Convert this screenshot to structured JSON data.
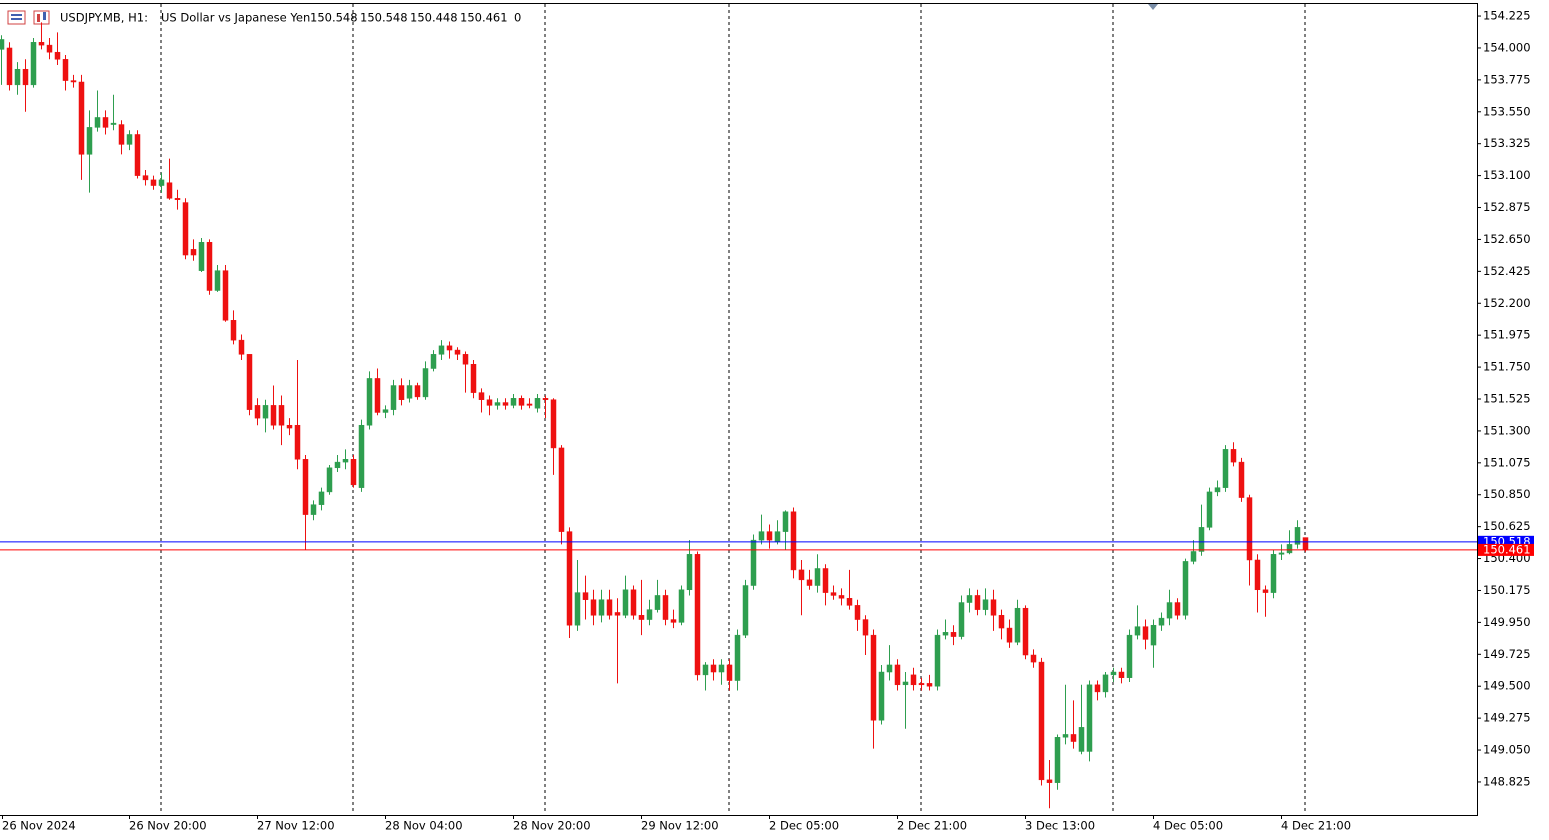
{
  "chart_data": {
    "type": "candlestick",
    "header": {
      "symbol": "USDJPY.MB, H1:",
      "description": "US Dollar vs Japanese Yen",
      "ohlc": [
        150.548,
        150.548,
        150.448,
        150.461
      ],
      "tick_volume": 0
    },
    "categories": [
      "26 Nov 2024",
      null,
      null,
      null,
      null,
      null,
      null,
      null,
      null,
      null,
      null,
      null,
      null,
      null,
      null,
      null,
      "26 Nov 20:00",
      null,
      null,
      null,
      null,
      null,
      null,
      null,
      null,
      null,
      null,
      null,
      null,
      null,
      null,
      null,
      "27 Nov 12:00",
      null,
      null,
      null,
      null,
      null,
      null,
      null,
      null,
      null,
      null,
      null,
      null,
      null,
      null,
      null,
      "28 Nov 04:00",
      null,
      null,
      null,
      null,
      null,
      null,
      null,
      null,
      null,
      null,
      null,
      null,
      null,
      null,
      null,
      "28 Nov 20:00",
      null,
      null,
      null,
      null,
      null,
      null,
      null,
      null,
      null,
      null,
      null,
      null,
      null,
      null,
      null,
      "29 Nov 12:00",
      null,
      null,
      null,
      null,
      null,
      null,
      null,
      null,
      null,
      null,
      null,
      null,
      null,
      null,
      null,
      "2 Dec 05:00",
      null,
      null,
      null,
      null,
      null,
      null,
      null,
      null,
      null,
      null,
      null,
      null,
      null,
      null,
      null,
      "2 Dec 21:00",
      null,
      null,
      null,
      null,
      null,
      null,
      null,
      null,
      null,
      null,
      null,
      null,
      null,
      null,
      null,
      "3 Dec 13:00",
      null,
      null,
      null,
      null,
      null,
      null,
      null,
      null,
      null,
      null,
      null,
      null,
      null,
      null,
      null,
      "4 Dec 05:00",
      null,
      null,
      null,
      null,
      null,
      null,
      null,
      null,
      null,
      null,
      null,
      null,
      null,
      null,
      null,
      "4 Dec 21:00",
      null,
      null,
      null
    ],
    "open": [
      153.99,
      154.0,
      153.74,
      153.85,
      153.74,
      154.04,
      154.02,
      153.97,
      153.92,
      153.77,
      153.76,
      153.25,
      153.44,
      153.51,
      153.46,
      153.46,
      153.32,
      153.39,
      153.1,
      153.07,
      153.03,
      153.05,
      152.94,
      152.91,
      152.58,
      152.43,
      152.63,
      152.29,
      152.43,
      152.08,
      151.94,
      151.84,
      151.48,
      151.39,
      151.48,
      151.48,
      151.34,
      151.34,
      151.1,
      150.71,
      150.78,
      150.87,
      151.04,
      151.08,
      151.1,
      150.9,
      151.34,
      151.67,
      151.43,
      151.45,
      151.62,
      151.53,
      151.62,
      151.54,
      151.74,
      151.84,
      151.9,
      151.87,
      151.84,
      151.77,
      151.57,
      151.52,
      151.48,
      151.5,
      151.48,
      151.53,
      151.49,
      151.46,
      151.53,
      151.52,
      151.18,
      150.59,
      149.93,
      150.16,
      150.11,
      150.0,
      150.11,
      150.02,
      150.0,
      150.18,
      150.0,
      149.97,
      150.04,
      150.14,
      149.97,
      149.95,
      150.18,
      150.43,
      149.58,
      149.65,
      149.6,
      149.65,
      149.54,
      149.86,
      150.21,
      150.53,
      150.59,
      150.52,
      150.59,
      150.73,
      150.32,
      150.25,
      150.21,
      150.33,
      150.16,
      150.14,
      150.12,
      150.07,
      149.97,
      149.86,
      149.26,
      149.6,
      149.65,
      149.51,
      149.58,
      149.52,
      149.52,
      149.5,
      149.86,
      149.88,
      149.85,
      150.09,
      150.14,
      150.04,
      150.11,
      150.0,
      149.91,
      149.81,
      150.05,
      149.72,
      149.67,
      148.84,
      148.82,
      149.14,
      149.16,
      149.04,
      149.04,
      149.51,
      149.46,
      149.58,
      149.6,
      149.56,
      149.86,
      149.92,
      149.79,
      149.93,
      149.98,
      150.09,
      150.0,
      150.38,
      150.45,
      150.62,
      150.87,
      150.9,
      151.17,
      151.08,
      150.83,
      150.39,
      150.18,
      150.16,
      150.43,
      150.44,
      150.5,
      150.548
    ],
    "high": [
      154.09,
      154.04,
      153.9,
      153.92,
      154.07,
      154.18,
      154.07,
      154.11,
      153.95,
      153.81,
      153.81,
      153.56,
      153.7,
      153.56,
      153.67,
      153.49,
      153.42,
      153.42,
      153.14,
      153.1,
      153.12,
      153.22,
      153.0,
      152.94,
      152.65,
      152.66,
      152.65,
      152.47,
      152.47,
      152.15,
      151.98,
      151.84,
      151.53,
      151.52,
      151.62,
      151.55,
      151.39,
      151.8,
      151.13,
      150.81,
      150.9,
      151.06,
      151.13,
      151.17,
      151.13,
      151.38,
      151.72,
      151.74,
      151.48,
      151.66,
      151.67,
      151.66,
      151.64,
      151.79,
      151.87,
      151.94,
      151.93,
      151.89,
      151.86,
      151.8,
      151.6,
      151.55,
      151.53,
      151.53,
      151.56,
      151.55,
      151.53,
      151.56,
      151.55,
      151.53,
      151.2,
      150.62,
      150.39,
      150.28,
      150.18,
      150.18,
      150.18,
      150.12,
      150.28,
      150.21,
      150.25,
      150.11,
      150.25,
      150.18,
      150.04,
      150.21,
      150.53,
      150.45,
      149.67,
      149.69,
      149.69,
      149.69,
      149.9,
      150.25,
      150.57,
      150.71,
      150.64,
      150.67,
      150.74,
      150.76,
      150.39,
      150.32,
      150.43,
      150.36,
      150.21,
      150.19,
      150.32,
      150.11,
      150.0,
      149.9,
      149.65,
      149.79,
      149.69,
      149.6,
      149.63,
      149.56,
      149.58,
      149.9,
      149.97,
      149.93,
      150.14,
      150.19,
      150.18,
      150.19,
      150.18,
      150.04,
      149.97,
      150.11,
      150.07,
      149.76,
      149.7,
      148.98,
      149.16,
      149.51,
      149.4,
      149.51,
      149.54,
      149.54,
      149.6,
      149.63,
      149.63,
      149.9,
      150.07,
      149.97,
      149.97,
      150.02,
      150.18,
      150.12,
      150.4,
      150.53,
      150.78,
      150.9,
      150.95,
      151.2,
      151.22,
      151.11,
      150.85,
      150.43,
      150.21,
      150.46,
      150.5,
      150.6,
      150.67,
      150.548
    ],
    "low": [
      153.74,
      153.7,
      153.67,
      153.55,
      153.72,
      153.99,
      153.92,
      153.88,
      153.7,
      153.72,
      153.07,
      152.98,
      153.41,
      153.39,
      153.42,
      153.25,
      153.28,
      153.08,
      153.03,
      153.0,
      152.98,
      152.93,
      152.86,
      152.51,
      152.5,
      152.42,
      152.26,
      152.28,
      152.07,
      151.91,
      151.8,
      151.41,
      151.34,
      151.29,
      151.31,
      151.2,
      151.27,
      151.03,
      150.46,
      150.67,
      150.74,
      150.85,
      151.01,
      151.03,
      150.9,
      150.87,
      151.31,
      151.41,
      151.39,
      151.41,
      151.48,
      151.5,
      151.52,
      151.52,
      151.72,
      151.8,
      151.81,
      151.8,
      151.57,
      151.53,
      151.43,
      151.41,
      151.45,
      151.45,
      151.46,
      151.45,
      151.46,
      151.43,
      151.39,
      150.99,
      150.5,
      149.84,
      149.89,
      149.97,
      149.93,
      149.95,
      149.97,
      149.52,
      149.98,
      149.97,
      149.86,
      149.93,
      150.02,
      149.93,
      149.91,
      149.93,
      150.14,
      149.54,
      149.47,
      149.54,
      149.51,
      149.47,
      149.47,
      149.84,
      150.18,
      150.5,
      150.47,
      150.5,
      150.46,
      150.26,
      150.0,
      150.18,
      150.16,
      150.07,
      150.11,
      150.07,
      150.04,
      149.89,
      149.72,
      149.06,
      149.23,
      149.54,
      149.47,
      149.2,
      149.47,
      149.47,
      149.47,
      149.47,
      149.83,
      149.79,
      149.83,
      150.02,
      150.0,
      150.0,
      149.89,
      149.83,
      149.77,
      149.79,
      149.69,
      149.63,
      148.8,
      148.64,
      148.77,
      149.09,
      149.06,
      149.02,
      148.97,
      149.4,
      149.42,
      149.53,
      149.52,
      149.53,
      149.83,
      149.76,
      149.63,
      149.89,
      149.93,
      149.97,
      149.97,
      150.36,
      150.42,
      150.6,
      150.84,
      150.87,
      151.05,
      150.8,
      150.21,
      150.02,
      149.99,
      150.12,
      150.39,
      150.43,
      150.47,
      150.448
    ],
    "close": [
      154.06,
      153.74,
      153.85,
      153.74,
      154.04,
      154.02,
      153.97,
      153.92,
      153.77,
      153.76,
      153.25,
      153.44,
      153.51,
      153.44,
      153.47,
      153.32,
      153.39,
      153.1,
      153.07,
      153.03,
      153.07,
      152.94,
      152.93,
      152.54,
      152.54,
      152.63,
      152.29,
      152.43,
      152.08,
      151.94,
      151.84,
      151.45,
      151.39,
      151.48,
      151.34,
      151.34,
      151.32,
      151.1,
      150.71,
      150.78,
      150.87,
      151.04,
      151.08,
      151.1,
      150.92,
      151.34,
      151.67,
      151.43,
      151.45,
      151.62,
      151.52,
      151.62,
      151.54,
      151.74,
      151.84,
      151.9,
      151.87,
      151.84,
      151.77,
      151.57,
      151.52,
      151.48,
      151.5,
      151.48,
      151.53,
      151.48,
      151.48,
      151.53,
      151.52,
      151.18,
      150.59,
      149.93,
      150.16,
      150.11,
      150.0,
      150.11,
      150.0,
      150.0,
      150.18,
      150.0,
      149.97,
      150.04,
      150.14,
      149.97,
      149.95,
      150.18,
      150.43,
      149.58,
      149.65,
      149.6,
      149.65,
      149.54,
      149.86,
      150.21,
      150.53,
      150.59,
      150.53,
      150.59,
      150.73,
      150.32,
      150.25,
      150.21,
      150.33,
      150.16,
      150.14,
      150.12,
      150.07,
      149.97,
      149.86,
      149.26,
      149.6,
      149.65,
      149.51,
      149.53,
      149.51,
      149.51,
      149.5,
      149.86,
      149.88,
      149.85,
      150.09,
      150.14,
      150.04,
      150.11,
      150.0,
      149.91,
      149.81,
      150.05,
      149.72,
      149.67,
      148.84,
      148.82,
      149.14,
      149.16,
      149.11,
      149.21,
      149.51,
      149.46,
      149.58,
      149.6,
      149.56,
      149.86,
      149.92,
      149.83,
      149.93,
      149.98,
      150.09,
      150.0,
      150.38,
      150.45,
      150.62,
      150.87,
      150.9,
      151.17,
      151.08,
      150.83,
      150.39,
      150.18,
      150.16,
      150.43,
      150.44,
      150.5,
      150.62,
      150.461
    ],
    "up_color": "#2e9e4f",
    "down_color": "#ee1111",
    "ask": 150.518,
    "ask_color": "#0000ff",
    "bid": 150.461,
    "bid_color": "#ff0000",
    "ylim": [
      148.592,
      154.317
    ],
    "yticks": [
      148.825,
      {
        "value": 149.05,
        "label": "149.050"
      },
      149.275,
      {
        "value": 149.5,
        "label": "149.500"
      },
      149.725,
      {
        "value": 149.95,
        "label": "149.950"
      },
      150.175,
      {
        "value": 150.4,
        "label": "150.400"
      },
      150.625,
      {
        "value": 150.85,
        "label": "150.850"
      },
      151.075,
      {
        "value": 151.3,
        "label": "151.300"
      },
      151.525,
      {
        "value": 151.75,
        "label": "151.750"
      },
      151.975,
      {
        "value": 152.2,
        "label": "152.200"
      },
      152.425,
      {
        "value": 152.65,
        "label": "152.650"
      },
      152.875,
      {
        "value": 153.1,
        "label": "153.100"
      },
      153.325,
      {
        "value": 153.55,
        "label": "153.550"
      },
      153.775,
      {
        "value": 154,
        "label": "154.000"
      },
      154.225
    ]
  }
}
